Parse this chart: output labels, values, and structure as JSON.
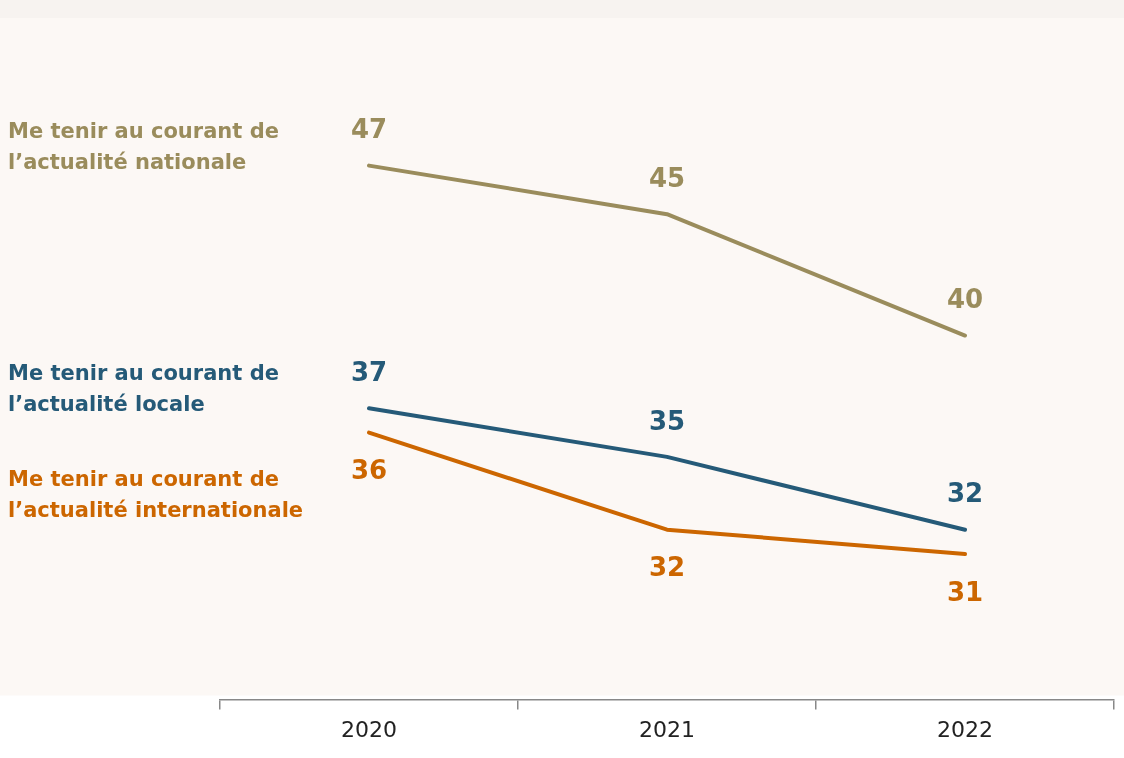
{
  "chart_data": {
    "type": "line",
    "categories": [
      "2020",
      "2021",
      "2022"
    ],
    "series": [
      {
        "name": "Me tenir au courant de l’actualité nationale",
        "color": "#9a8c5c",
        "values": [
          47,
          45,
          40
        ]
      },
      {
        "name": "Me tenir au courant de l’actualité locale",
        "color": "#255a78",
        "values": [
          37,
          35,
          32
        ]
      },
      {
        "name": "Me tenir au courant de l’actualité internationale",
        "color": "#cc6600",
        "values": [
          36,
          32,
          31
        ]
      }
    ],
    "data_labels": true,
    "marker": "none",
    "line_style": "solid",
    "grid": false,
    "legend": false,
    "tick_labels": "x"
  }
}
